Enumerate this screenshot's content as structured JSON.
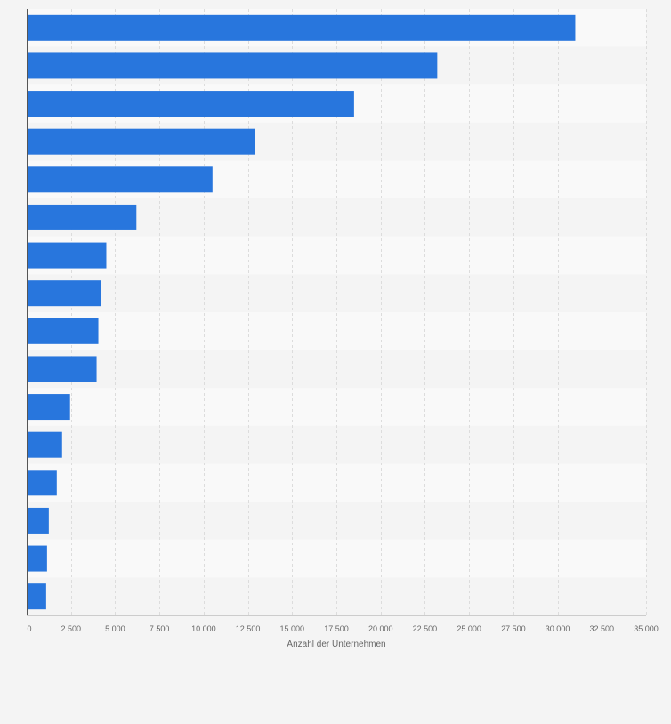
{
  "chart_data": {
    "type": "bar",
    "orientation": "horizontal",
    "categories": [
      "",
      "",
      "",
      "",
      "",
      "",
      "",
      "",
      "",
      "",
      "",
      "",
      "",
      "",
      "",
      ""
    ],
    "values": [
      31000,
      23200,
      18500,
      12900,
      10500,
      6200,
      4500,
      4200,
      4050,
      3950,
      2450,
      2000,
      1700,
      1250,
      1150,
      1100
    ],
    "xlabel": "Anzahl der Unternehmen",
    "ylabel": "",
    "xlim": [
      0,
      35000
    ],
    "x_ticks": [
      0,
      2500,
      5000,
      7500,
      10000,
      12500,
      15000,
      17500,
      20000,
      22500,
      25000,
      27500,
      30000,
      32500,
      35000
    ],
    "x_tick_labels": [
      "0",
      "2.500",
      "5.000",
      "7.500",
      "10.000",
      "12.500",
      "15.000",
      "17.500",
      "20.000",
      "22.500",
      "25.000",
      "27.500",
      "30.000",
      "32.500",
      "35.000"
    ],
    "grid": true,
    "legend": "none",
    "colors": {
      "bar": "#2876dd",
      "band_light": "#f9f9f9",
      "band_dark": "#f4f4f4",
      "grid": "#dcdcdc",
      "axis": "#555555",
      "text": "#666666",
      "background": "#f4f4f4"
    }
  }
}
